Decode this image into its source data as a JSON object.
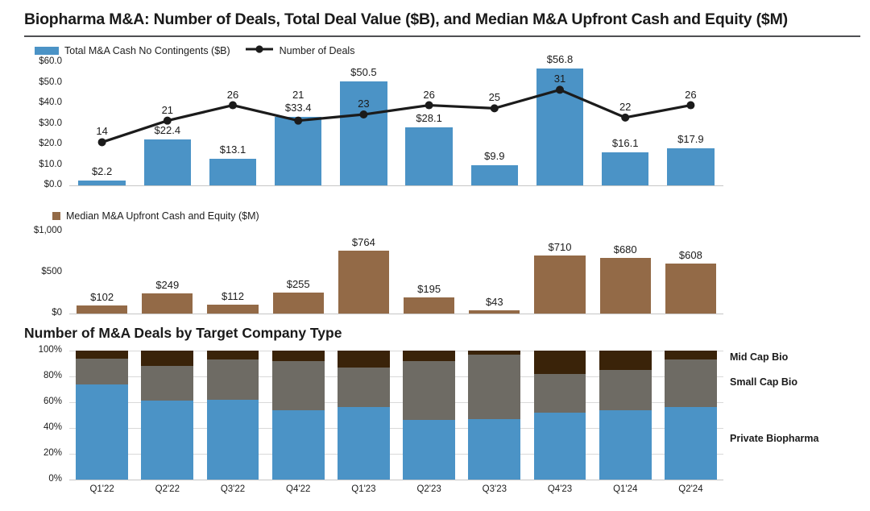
{
  "page": {
    "title": "Biopharma M&A: Number of Deals, Total Deal Value ($B), and Median M&A Upfront Cash and Equity ($M)"
  },
  "chart_data": [
    {
      "type": "bar",
      "name": "deals-and-value",
      "categories": [
        "Q1'22",
        "Q2'22",
        "Q3'22",
        "Q4'22",
        "Q1'23",
        "Q2'23",
        "Q3'23",
        "Q4'23",
        "Q1'24",
        "Q2'24"
      ],
      "legend_position": "top-left",
      "grid": false,
      "series": [
        {
          "name": "Total M&A Cash No Contingents ($B)",
          "type": "bar",
          "color": "#4B93C6",
          "ymax": 60,
          "values": [
            2.2,
            22.4,
            13.1,
            33.4,
            50.5,
            28.1,
            9.9,
            56.8,
            16.1,
            17.9
          ],
          "labels": [
            "$2.2",
            "$22.4",
            "$13.1",
            "$33.4",
            "$50.5",
            "$28.1",
            "$9.9",
            "$56.8",
            "$16.1",
            "$17.9"
          ]
        },
        {
          "name": "Number of Deals",
          "type": "line",
          "color": "#1B1B1B",
          "ymax": 40,
          "values": [
            14,
            21,
            26,
            21,
            23,
            26,
            25,
            31,
            22,
            26
          ],
          "labels": [
            "14",
            "21",
            "26",
            "21",
            "23",
            "26",
            "25",
            "31",
            "22",
            "26"
          ]
        }
      ],
      "yticks": [
        {
          "label": "$60.0",
          "value": 60
        },
        {
          "label": "$50.0",
          "value": 50
        },
        {
          "label": "$40.0",
          "value": 40
        },
        {
          "label": "$30.0",
          "value": 30
        },
        {
          "label": "$20.0",
          "value": 20
        },
        {
          "label": "$10.0",
          "value": 10
        },
        {
          "label": "$0.0",
          "value": 0
        }
      ]
    },
    {
      "type": "bar",
      "name": "median-upfront",
      "categories": [
        "Q1'22",
        "Q2'22",
        "Q3'22",
        "Q4'22",
        "Q1'23",
        "Q2'23",
        "Q3'23",
        "Q4'23",
        "Q1'24",
        "Q2'24"
      ],
      "legend": [
        "Median M&A Upfront Cash and Equity ($M)"
      ],
      "color": "#936A47",
      "ymax": 1000,
      "grid": false,
      "values": [
        102,
        249,
        112,
        255,
        764,
        195,
        43,
        710,
        680,
        608
      ],
      "labels": [
        "$102",
        "$249",
        "$112",
        "$255",
        "$764",
        "$195",
        "$43",
        "$710",
        "$680",
        "$608"
      ],
      "yticks": [
        {
          "label": "$1,000",
          "value": 1000
        },
        {
          "label": "$500",
          "value": 500
        },
        {
          "label": "$0",
          "value": 0
        }
      ]
    },
    {
      "type": "stacked-bar-100",
      "name": "deals-by-company-type",
      "title": "Number of M&A Deals by Target Company Type",
      "categories": [
        "Q1'22",
        "Q2'22",
        "Q3'22",
        "Q4'22",
        "Q1'23",
        "Q2'23",
        "Q3'23",
        "Q4'23",
        "Q1'24",
        "Q2'24"
      ],
      "ymax": 100,
      "grid": true,
      "series": [
        {
          "name": "Private Biopharma",
          "color": "#4B93C6",
          "values": [
            74,
            61,
            62,
            54,
            56,
            46,
            47,
            52,
            54,
            56
          ]
        },
        {
          "name": "Small Cap Bio",
          "color": "#6E6B64",
          "values": [
            20,
            27,
            31,
            38,
            31,
            46,
            50,
            30,
            31,
            37
          ]
        },
        {
          "name": "Mid Cap Bio",
          "color": "#3A2309",
          "values": [
            6,
            12,
            7,
            8,
            13,
            8,
            3,
            18,
            15,
            7
          ]
        }
      ],
      "yticks": [
        {
          "label": "100%",
          "value": 100
        },
        {
          "label": "80%",
          "value": 80
        },
        {
          "label": "60%",
          "value": 60
        },
        {
          "label": "40%",
          "value": 40
        },
        {
          "label": "20%",
          "value": 20
        },
        {
          "label": "0%",
          "value": 0
        }
      ],
      "right_labels": [
        "Mid Cap Bio",
        "Small Cap Bio",
        "Private Biopharma"
      ]
    }
  ]
}
